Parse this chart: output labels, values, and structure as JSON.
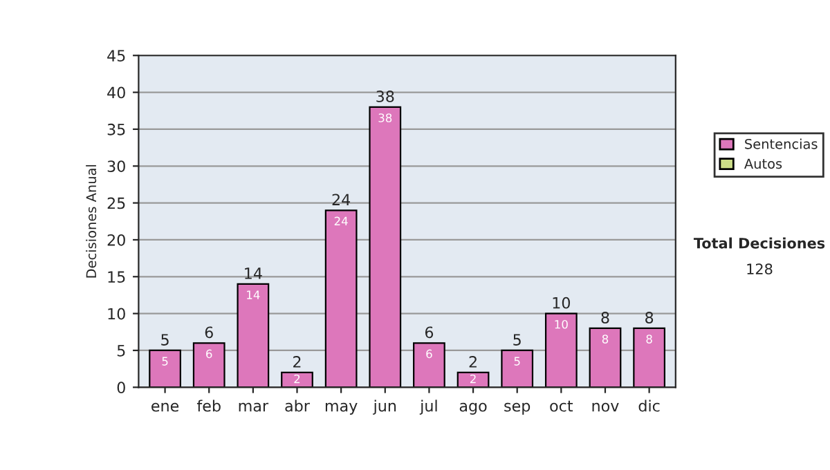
{
  "chart_data": {
    "type": "bar",
    "ylabel": "Decisiones Anual",
    "categories": [
      "ene",
      "feb",
      "mar",
      "abr",
      "may",
      "jun",
      "jul",
      "ago",
      "sep",
      "oct",
      "nov",
      "dic"
    ],
    "series": [
      {
        "name": "Sentencias",
        "color": "#dd77bb",
        "values": [
          5,
          6,
          14,
          2,
          24,
          38,
          6,
          2,
          5,
          10,
          8,
          8
        ],
        "value_labels": [
          "5",
          "6",
          "14",
          "2",
          "24",
          "38",
          "6",
          "2",
          "5",
          "10",
          "8",
          "8"
        ]
      },
      {
        "name": "Autos",
        "color": "#ccdd88",
        "values": [
          null,
          null,
          null,
          null,
          null,
          null,
          null,
          null,
          null,
          null,
          null,
          null
        ]
      }
    ],
    "ylim": [
      0,
      45
    ],
    "yticks": [
      0,
      5,
      10,
      15,
      20,
      25,
      30,
      35,
      40,
      45
    ],
    "grid": "y",
    "legend": "right",
    "annotations": [
      "Total Decisiones",
      "128",
      {
        "text": "5",
        "x": "ene",
        "y": 5
      },
      {
        "text": "6",
        "x": "feb",
        "y": 6
      },
      {
        "text": "14",
        "x": "mar",
        "y": 14
      },
      {
        "text": "2",
        "x": "abr",
        "y": 2
      },
      {
        "text": "24",
        "x": "may",
        "y": 24
      },
      {
        "text": "38",
        "x": "jun",
        "y": 38
      },
      {
        "text": "6",
        "x": "jul",
        "y": 6
      },
      {
        "text": "2",
        "x": "ago",
        "y": 2
      },
      {
        "text": "5",
        "x": "sep",
        "y": 5
      },
      {
        "text": "10",
        "x": "oct",
        "y": 10
      },
      {
        "text": "8",
        "x": "nov",
        "y": 8
      },
      {
        "text": "8",
        "x": "dic",
        "y": 8
      }
    ]
  }
}
